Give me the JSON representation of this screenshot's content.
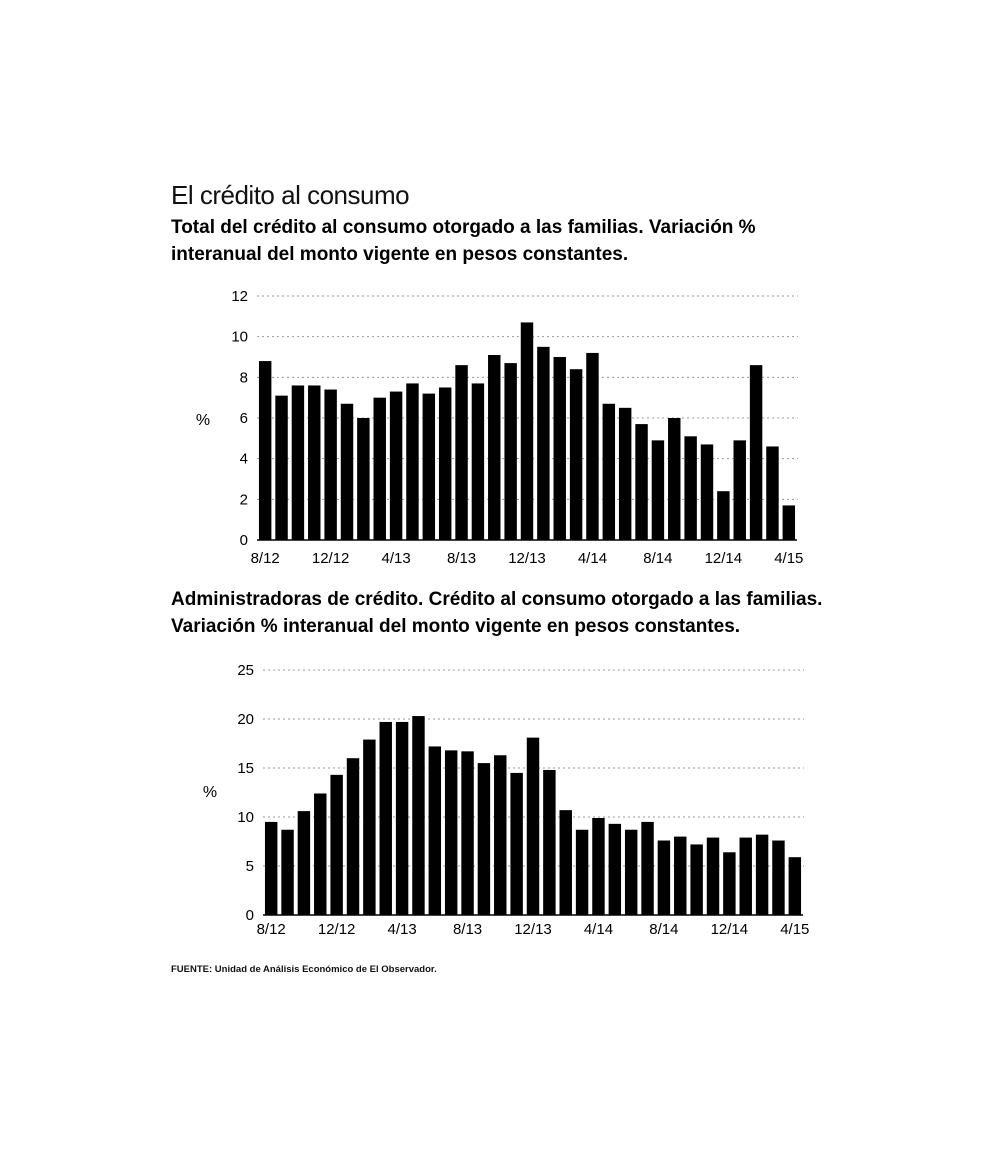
{
  "title": "El crédito al consumo",
  "source": "FUENTE: Unidad de Análisis Económico de El Observador.",
  "chart_data": [
    {
      "type": "bar",
      "title": "Total del crédito al consumo otorgado a las familias. Variación %",
      "title_line2": "interanual del monto vigente en pesos constantes.",
      "ylabel": "%",
      "ylim": [
        0,
        12
      ],
      "yticks": [
        0,
        2,
        4,
        6,
        8,
        10,
        12
      ],
      "xtick_labels": [
        "8/12",
        "12/12",
        "4/13",
        "8/13",
        "12/13",
        "4/14",
        "8/14",
        "12/14",
        "4/15"
      ],
      "grid": true,
      "bar_color": "#000000",
      "grid_color": "#999999",
      "values": [
        8.8,
        7.1,
        7.6,
        7.6,
        7.4,
        6.7,
        6.0,
        7.0,
        7.3,
        7.7,
        7.2,
        7.5,
        8.6,
        7.7,
        9.1,
        8.7,
        10.7,
        9.5,
        9.0,
        8.4,
        9.2,
        6.7,
        6.5,
        5.7,
        4.9,
        6.0,
        5.1,
        4.7,
        2.4,
        4.9,
        8.6,
        4.6,
        1.7
      ]
    },
    {
      "type": "bar",
      "title": "Administradoras de crédito. Crédito al consumo otorgado a las familias.",
      "title_line2": "Variación % interanual del monto vigente en pesos constantes.",
      "ylabel": "%",
      "ylim": [
        0,
        25
      ],
      "yticks": [
        0,
        5,
        10,
        15,
        20,
        25
      ],
      "xtick_labels": [
        "8/12",
        "12/12",
        "4/13",
        "8/13",
        "12/13",
        "4/14",
        "8/14",
        "12/14",
        "4/15"
      ],
      "grid": true,
      "bar_color": "#000000",
      "grid_color": "#999999",
      "values": [
        9.5,
        8.7,
        10.6,
        12.4,
        14.3,
        16.0,
        17.9,
        19.7,
        19.7,
        20.3,
        17.2,
        16.8,
        16.7,
        15.5,
        16.3,
        14.5,
        18.1,
        14.8,
        10.7,
        8.7,
        9.9,
        9.3,
        8.7,
        9.5,
        7.6,
        8.0,
        7.2,
        7.9,
        6.4,
        7.9,
        8.2,
        7.6,
        5.9
      ]
    }
  ]
}
